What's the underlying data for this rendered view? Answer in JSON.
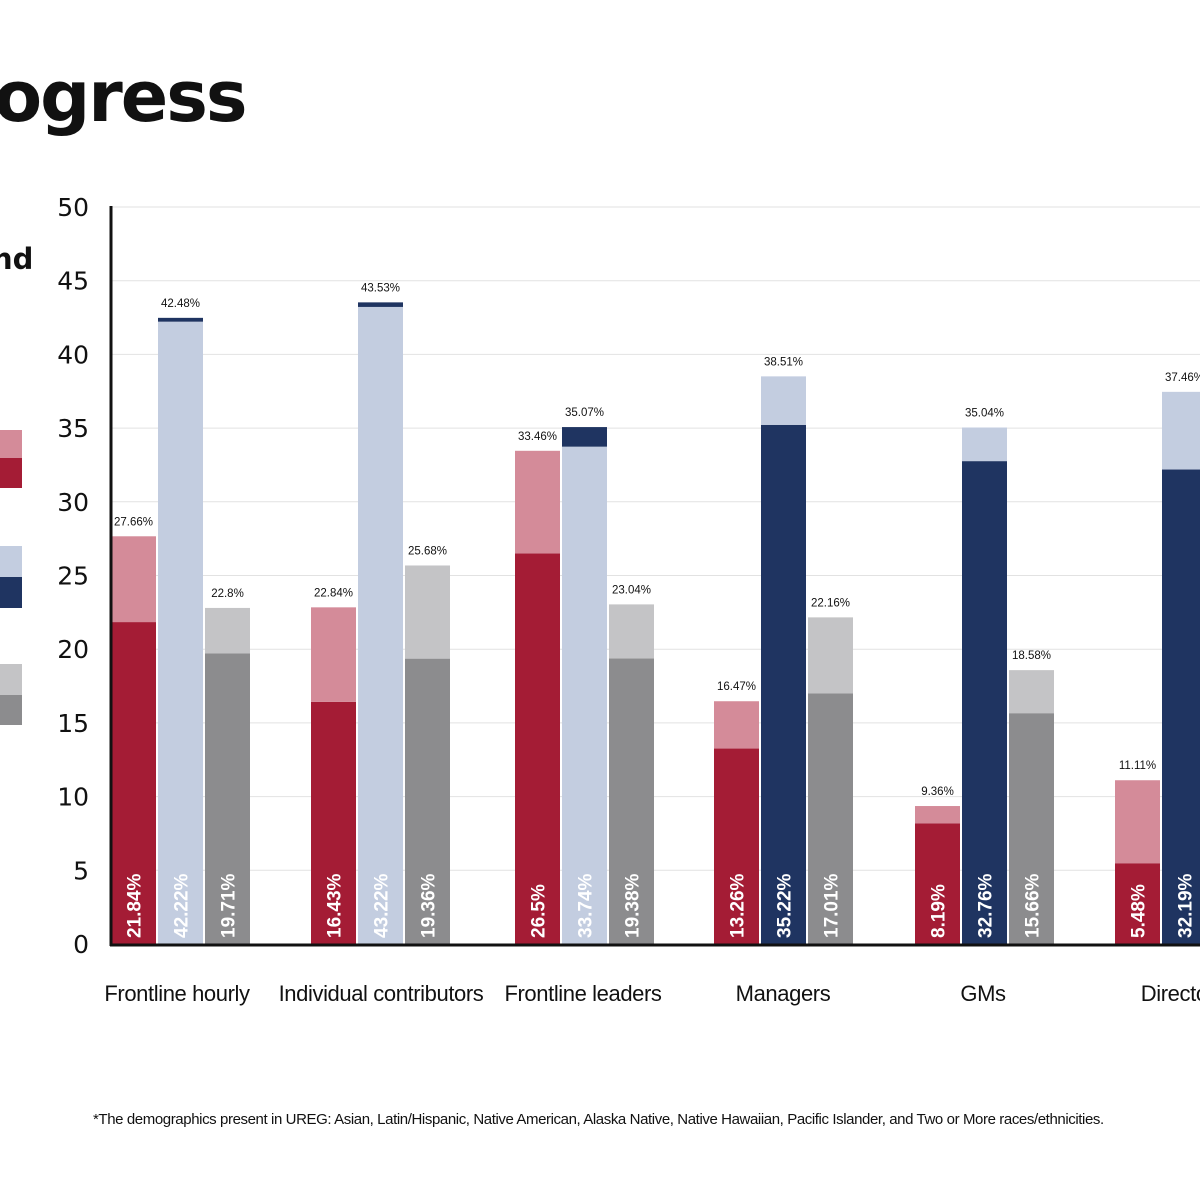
{
  "title": "ogress",
  "legend": {
    "label_fragment": "nd",
    "swatches": [
      {
        "name": "red-light",
        "color": "#d48b99"
      },
      {
        "name": "red-dark",
        "color": "#a41c35"
      },
      {
        "name": "blue-light",
        "color": "#c3cde0"
      },
      {
        "name": "blue-dark",
        "color": "#1f3461"
      },
      {
        "name": "gray-light",
        "color": "#c4c4c6"
      },
      {
        "name": "gray-dark",
        "color": "#8c8c8e"
      }
    ]
  },
  "footnote": "*The demographics present in UREG: Asian, Latin/Hispanic, Native American, Alaska Native, Native Hawaiian, Pacific Islander, and Two or More races/ethnicities.",
  "colors": {
    "red_light": "#d48b99",
    "red_dark": "#a41c35",
    "blue_light": "#c3cde0",
    "blue_dark": "#1f3461",
    "gray_light": "#c4c4c6",
    "gray_dark": "#8c8c8e",
    "axis": "#111111",
    "grid": "#e2e2e2"
  },
  "chart_data": {
    "type": "bar",
    "ylim": [
      0,
      50
    ],
    "yticks": [
      0,
      5,
      10,
      15,
      20,
      25,
      30,
      35,
      40,
      45,
      50
    ],
    "grid": true,
    "categories": [
      "Frontline hourly",
      "Individual contributors",
      "Frontline leaders",
      "Managers",
      "GMs",
      "Directors"
    ],
    "groups": [
      [
        {
          "group": "red",
          "bottom": 21.84,
          "top": 27.66,
          "bottom_label": "21.84%",
          "top_label": "27.66%",
          "top_dark": false
        },
        {
          "group": "blue",
          "bottom": 42.22,
          "top": 42.48,
          "bottom_label": "42.22%",
          "top_label": "42.48%",
          "top_dark": true
        },
        {
          "group": "gray",
          "bottom": 19.71,
          "top": 22.8,
          "bottom_label": "19.71%",
          "top_label": "22.8%",
          "top_dark": false
        }
      ],
      [
        {
          "group": "red",
          "bottom": 16.43,
          "top": 22.84,
          "bottom_label": "16.43%",
          "top_label": "22.84%",
          "top_dark": false
        },
        {
          "group": "blue",
          "bottom": 43.22,
          "top": 43.53,
          "bottom_label": "43.22%",
          "top_label": "43.53%",
          "top_dark": true
        },
        {
          "group": "gray",
          "bottom": 19.36,
          "top": 25.68,
          "bottom_label": "19.36%",
          "top_label": "25.68%",
          "top_dark": false
        }
      ],
      [
        {
          "group": "red",
          "bottom": 26.5,
          "top": 33.46,
          "bottom_label": "26.5%",
          "top_label": "33.46%",
          "top_dark": false
        },
        {
          "group": "blue",
          "bottom": 33.74,
          "top": 35.07,
          "bottom_label": "33.74%",
          "top_label": "35.07%",
          "top_dark": true
        },
        {
          "group": "gray",
          "bottom": 19.38,
          "top": 23.04,
          "bottom_label": "19.38%",
          "top_label": "23.04%",
          "top_dark": false
        }
      ],
      [
        {
          "group": "red",
          "bottom": 13.26,
          "top": 16.47,
          "bottom_label": "13.26%",
          "top_label": "16.47%",
          "top_dark": false
        },
        {
          "group": "blue",
          "bottom": 35.22,
          "top": 38.51,
          "bottom_label": "35.22%",
          "top_label": "38.51%",
          "top_dark": false
        },
        {
          "group": "gray",
          "bottom": 17.01,
          "top": 22.16,
          "bottom_label": "17.01%",
          "top_label": "22.16%",
          "top_dark": false
        }
      ],
      [
        {
          "group": "red",
          "bottom": 8.19,
          "top": 9.36,
          "bottom_label": "8.19%",
          "top_label": "9.36%",
          "top_dark": false
        },
        {
          "group": "blue",
          "bottom": 32.76,
          "top": 35.04,
          "bottom_label": "32.76%",
          "top_label": "35.04%",
          "top_dark": false
        },
        {
          "group": "gray",
          "bottom": 15.66,
          "top": 18.58,
          "bottom_label": "15.66%",
          "top_label": "18.58%",
          "top_dark": false
        }
      ],
      [
        {
          "group": "red",
          "bottom": 5.48,
          "top": 11.11,
          "bottom_label": "5.48%",
          "top_label": "11.11%",
          "top_dark": false
        },
        {
          "group": "blue",
          "bottom": 32.19,
          "top": 37.46,
          "bottom_label": "32.19%",
          "top_label": "37.46%",
          "top_dark": false
        }
      ]
    ]
  }
}
